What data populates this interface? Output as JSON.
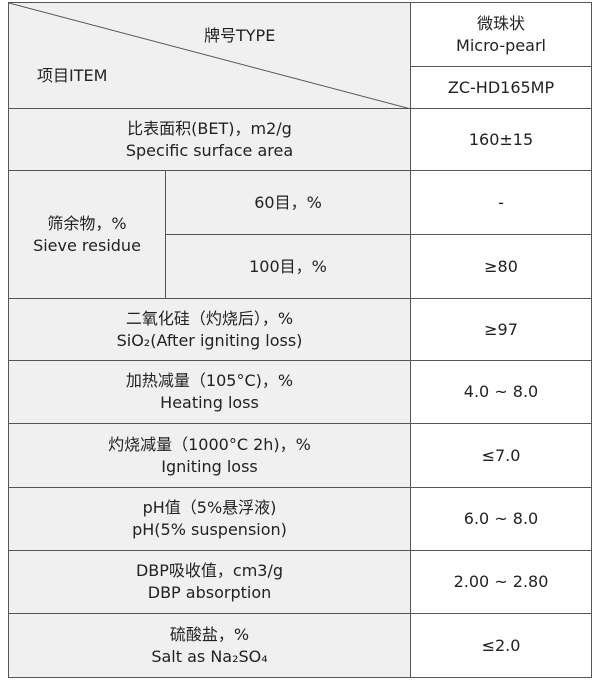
{
  "header": {
    "type_label": "牌号TYPE",
    "item_label": "项目ITEM",
    "product_form": [
      "微珠状",
      "Micro-pearl"
    ],
    "model": "ZC-HD165MP"
  },
  "rows": [
    {
      "item": [
        "比表面积(BET)，m2/g",
        "Specific surface area"
      ],
      "value": "160±15"
    },
    {
      "item": [
        "筛余物，%",
        "Sieve residue"
      ],
      "sub": [
        {
          "label": "60目，%",
          "value": "-"
        },
        {
          "label": "100目，%",
          "value": "≥80"
        }
      ]
    },
    {
      "item": [
        "二氧化硅（灼烧后），%",
        "SiO₂(After igniting loss)"
      ],
      "value": "≥97"
    },
    {
      "item": [
        "加热减量（105°C)，%",
        "Heating loss"
      ],
      "value": "4.0 ~ 8.0"
    },
    {
      "item": [
        "灼烧减量（1000°C 2h)，%",
        "Igniting loss"
      ],
      "value": "≤7.0"
    },
    {
      "item": [
        "pH值（5%悬浮液)",
        "pH(5% suspension)"
      ],
      "value": "6.0 ~ 8.0"
    },
    {
      "item": [
        "DBP吸收值，cm3/g",
        "DBP absorption"
      ],
      "value": "2.00 ~ 2.80"
    },
    {
      "item": [
        "硫酸盐，%",
        "Salt as Na₂SO₄"
      ],
      "value": "≤2.0"
    }
  ]
}
